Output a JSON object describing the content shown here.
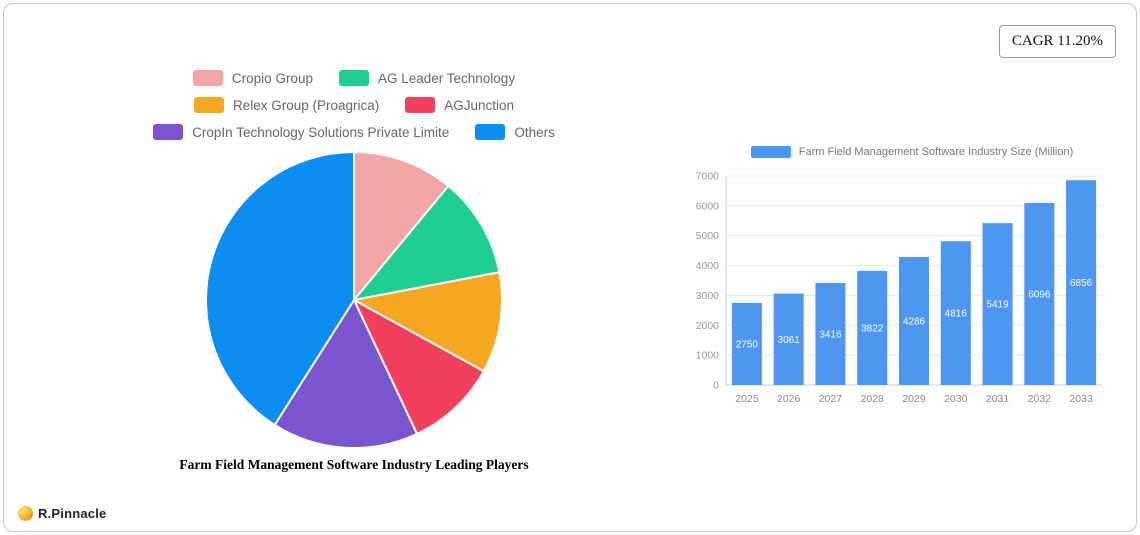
{
  "cagr": {
    "label": "CAGR 11.20%"
  },
  "footer": {
    "brand": "R.Pinnacle"
  },
  "chart_data": [
    {
      "type": "pie",
      "title": "Farm Field Management Software Industry Leading Players",
      "legend_position": "top",
      "units": "percent (estimated from slice angles)",
      "labels": [
        "Cropio Group",
        "AG Leader Technology",
        "Relex Group (Proagrica)",
        "AGJunction",
        "CropIn Technology Solutions Private Limite",
        "Others"
      ],
      "values": [
        11,
        11,
        11,
        10,
        16,
        41
      ],
      "colors": [
        "#f4a5a5",
        "#1fce93",
        "#f6a722",
        "#f43f5e",
        "#7a55cf",
        "#0b8df2"
      ]
    },
    {
      "type": "bar",
      "title": "Farm Field Management Software Industry Size (Million)",
      "legend_position": "top",
      "categories": [
        "2025",
        "2026",
        "2027",
        "2028",
        "2029",
        "2030",
        "2031",
        "2032",
        "2033"
      ],
      "values": [
        2750,
        3061,
        3416,
        3822,
        4286,
        4816,
        5419,
        6096,
        6856
      ],
      "xlabel": "",
      "ylabel": "",
      "ylim": [
        0,
        7000
      ],
      "y_ticks": [
        0,
        1000,
        2000,
        3000,
        4000,
        5000,
        6000,
        7000
      ],
      "grid": true,
      "color": "#4d96f1",
      "value_labels": "inside-white"
    }
  ]
}
